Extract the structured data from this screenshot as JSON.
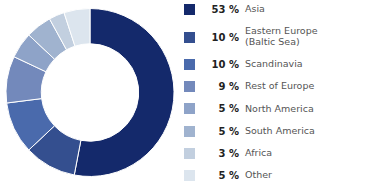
{
  "chart_data": {
    "type": "pie",
    "categories": [
      "Asia",
      "Eastern Europe\n(Baltic Sea)",
      "Scandinavia",
      "Rest of Europe",
      "North America",
      "South America",
      "Africa",
      "Other"
    ],
    "values": [
      53,
      10,
      10,
      9,
      5,
      5,
      3,
      5
    ],
    "value_labels": [
      "53 %",
      "10 %",
      "10 %",
      "9 %",
      "5 %",
      "5 %",
      "3 %",
      "5 %"
    ],
    "colors": [
      "#14296b",
      "#344f8f",
      "#4a6aac",
      "#7389bb",
      "#8ea3c8",
      "#a0b3cf",
      "#c2cfdf",
      "#dce5ee"
    ],
    "donut": true,
    "legend": "right"
  }
}
